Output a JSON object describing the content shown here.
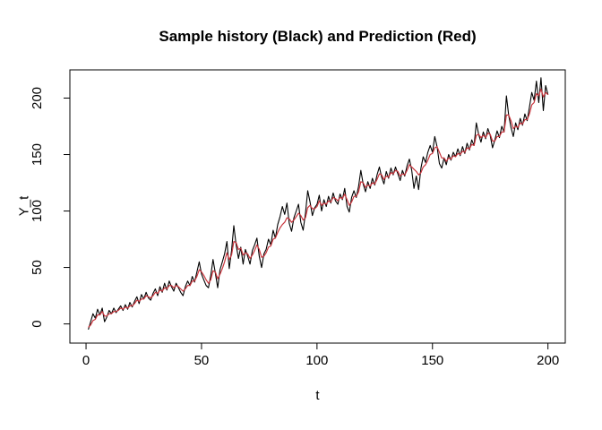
{
  "chart_data": {
    "type": "line",
    "title": "Sample history (Black) and Prediction (Red)",
    "xlabel": "t",
    "ylabel": "Y_t",
    "x_start": 1,
    "xlim": [
      -7,
      207.5
    ],
    "ylim": [
      -17,
      225
    ],
    "x_ticks": [
      0,
      50,
      100,
      150,
      200
    ],
    "y_ticks": [
      0,
      50,
      100,
      150,
      200
    ],
    "grid": false,
    "legend_position": "none",
    "box": true,
    "series": [
      {
        "name": "Sample history",
        "color": "#000000",
        "values": [
          -5,
          2,
          9,
          5,
          13,
          8,
          14,
          2,
          6,
          12,
          9,
          14,
          10,
          13,
          16,
          12,
          17,
          13,
          19,
          15,
          20,
          24,
          18,
          26,
          22,
          28,
          23,
          21,
          27,
          31,
          25,
          33,
          28,
          36,
          30,
          38,
          33,
          29,
          36,
          32,
          28,
          25,
          33,
          38,
          34,
          42,
          37,
          46,
          55,
          44,
          39,
          34,
          32,
          43,
          57,
          45,
          32,
          48,
          55,
          62,
          73,
          49,
          65,
          87,
          70,
          58,
          68,
          53,
          66,
          60,
          53,
          65,
          70,
          76,
          60,
          50,
          62,
          66,
          75,
          70,
          83,
          76,
          88,
          95,
          104,
          97,
          107,
          89,
          82,
          94,
          100,
          106,
          90,
          83,
          98,
          118,
          108,
          96,
          103,
          106,
          114,
          100,
          110,
          104,
          113,
          107,
          116,
          109,
          106,
          115,
          110,
          120,
          104,
          99,
          112,
          118,
          112,
          122,
          136,
          124,
          117,
          126,
          120,
          129,
          123,
          132,
          139,
          130,
          124,
          135,
          129,
          138,
          132,
          139,
          133,
          127,
          136,
          131,
          140,
          146,
          136,
          120,
          131,
          119,
          138,
          148,
          143,
          152,
          158,
          152,
          166,
          157,
          142,
          138,
          147,
          141,
          150,
          145,
          152,
          148,
          155,
          149,
          157,
          151,
          160,
          154,
          163,
          158,
          178,
          168,
          161,
          170,
          164,
          173,
          167,
          156,
          163,
          171,
          165,
          175,
          170,
          202,
          185,
          174,
          166,
          178,
          172,
          182,
          176,
          186,
          180,
          192,
          205,
          198,
          215,
          196,
          218,
          189,
          211,
          203
        ]
      },
      {
        "name": "Prediction",
        "color": "#c9353d",
        "values": [
          -3,
          -1,
          3,
          4,
          8,
          8,
          11,
          7,
          7,
          9,
          9,
          11,
          11,
          12,
          14,
          13,
          15,
          14,
          16,
          16,
          18,
          21,
          20,
          22,
          22,
          25,
          24,
          23,
          25,
          28,
          27,
          30,
          29,
          32,
          31,
          34,
          34,
          32,
          34,
          33,
          31,
          29,
          31,
          34,
          34,
          38,
          38,
          42,
          48,
          46,
          43,
          39,
          36,
          39,
          47,
          46,
          40,
          44,
          49,
          55,
          63,
          57,
          61,
          73,
          72,
          66,
          67,
          61,
          63,
          62,
          58,
          61,
          65,
          70,
          66,
          59,
          60,
          63,
          68,
          69,
          75,
          76,
          81,
          85,
          88,
          90,
          94,
          93,
          90,
          92,
          95,
          98,
          96,
          92,
          94,
          103,
          105,
          102,
          102,
          104,
          109,
          105,
          107,
          106,
          109,
          108,
          112,
          111,
          109,
          112,
          111,
          115,
          110,
          105,
          108,
          113,
          113,
          117,
          126,
          125,
          121,
          123,
          122,
          125,
          124,
          128,
          133,
          132,
          128,
          131,
          130,
          134,
          133,
          136,
          135,
          131,
          133,
          132,
          136,
          141,
          139,
          137,
          135,
          132,
          134,
          139,
          141,
          145,
          150,
          151,
          156,
          157,
          152,
          147,
          147,
          144,
          147,
          146,
          149,
          148,
          151,
          150,
          153,
          152,
          156,
          155,
          159,
          158,
          167,
          168,
          165,
          167,
          165,
          169,
          168,
          162,
          162,
          166,
          166,
          170,
          170,
          185,
          185,
          180,
          173,
          175,
          174,
          178,
          177,
          181,
          181,
          186,
          194,
          196,
          204,
          202,
          208,
          201,
          205,
          203
        ]
      }
    ]
  },
  "colors": {
    "background": "#ffffff",
    "axis": "#000000",
    "history_line": "#000000",
    "prediction_line": "#c9353d"
  }
}
